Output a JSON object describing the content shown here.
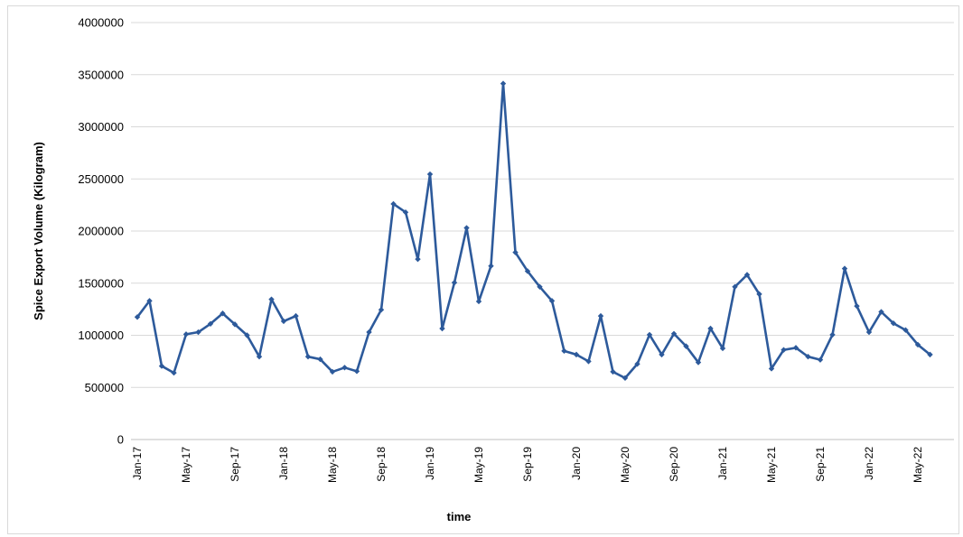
{
  "chart_data": {
    "type": "line",
    "title": "",
    "xlabel": "time",
    "ylabel": "Spice Export Volume (Kilogram)",
    "ylim": [
      0,
      4000000
    ],
    "yticks": [
      0,
      500000,
      1000000,
      1500000,
      2000000,
      2500000,
      3000000,
      3500000,
      4000000
    ],
    "ytick_labels": [
      "0",
      "500000",
      "1000000",
      "1500000",
      "2000000",
      "2500000",
      "3000000",
      "3500000",
      "4000000"
    ],
    "x": [
      "Jan-17",
      "Feb-17",
      "Mar-17",
      "Apr-17",
      "May-17",
      "Jun-17",
      "Jul-17",
      "Aug-17",
      "Sep-17",
      "Oct-17",
      "Nov-17",
      "Dec-17",
      "Jan-18",
      "Feb-18",
      "Mar-18",
      "Apr-18",
      "May-18",
      "Jun-18",
      "Jul-18",
      "Aug-18",
      "Sep-18",
      "Oct-18",
      "Nov-18",
      "Dec-18",
      "Jan-19",
      "Feb-19",
      "Mar-19",
      "Apr-19",
      "May-19",
      "Jun-19",
      "Jul-19",
      "Aug-19",
      "Sep-19",
      "Oct-19",
      "Nov-19",
      "Dec-19",
      "Jan-20",
      "Feb-20",
      "Mar-20",
      "Apr-20",
      "May-20",
      "Jun-20",
      "Jul-20",
      "Aug-20",
      "Sep-20",
      "Oct-20",
      "Nov-20",
      "Dec-20",
      "Jan-21",
      "Feb-21",
      "Mar-21",
      "Apr-21",
      "May-21",
      "Jun-21",
      "Jul-21",
      "Aug-21",
      "Sep-21",
      "Oct-21",
      "Nov-21",
      "Dec-21",
      "Jan-22",
      "Feb-22",
      "Mar-22",
      "Apr-22",
      "May-22",
      "Jun-22"
    ],
    "xtick_labels": [
      "Jan-17",
      "May-17",
      "Sep-17",
      "Jan-18",
      "May-18",
      "Sep-18",
      "Jan-19",
      "May-19",
      "Sep-19",
      "Jan-20",
      "May-20",
      "Sep-20",
      "Jan-21",
      "May-21",
      "Sep-21",
      "Jan-22",
      "May-22"
    ],
    "series": [
      {
        "values": [
          1175000,
          1330000,
          705000,
          640000,
          1010000,
          1030000,
          1110000,
          1210000,
          1105000,
          1000000,
          795000,
          1345000,
          1135000,
          1185000,
          795000,
          770000,
          650000,
          690000,
          655000,
          1030000,
          1245000,
          2260000,
          2180000,
          1730000,
          2545000,
          1065000,
          1505000,
          2030000,
          1325000,
          1665000,
          3415000,
          1795000,
          1615000,
          1465000,
          1330000,
          850000,
          815000,
          750000,
          1185000,
          650000,
          590000,
          725000,
          1005000,
          815000,
          1015000,
          895000,
          740000,
          1065000,
          875000,
          1465000,
          1580000,
          1395000,
          680000,
          860000,
          880000,
          795000,
          765000,
          1005000,
          1640000,
          1280000,
          1030000,
          1225000,
          1115000,
          1050000,
          910000,
          815000
        ],
        "color": "#2d5a9b"
      }
    ],
    "grid": true
  }
}
